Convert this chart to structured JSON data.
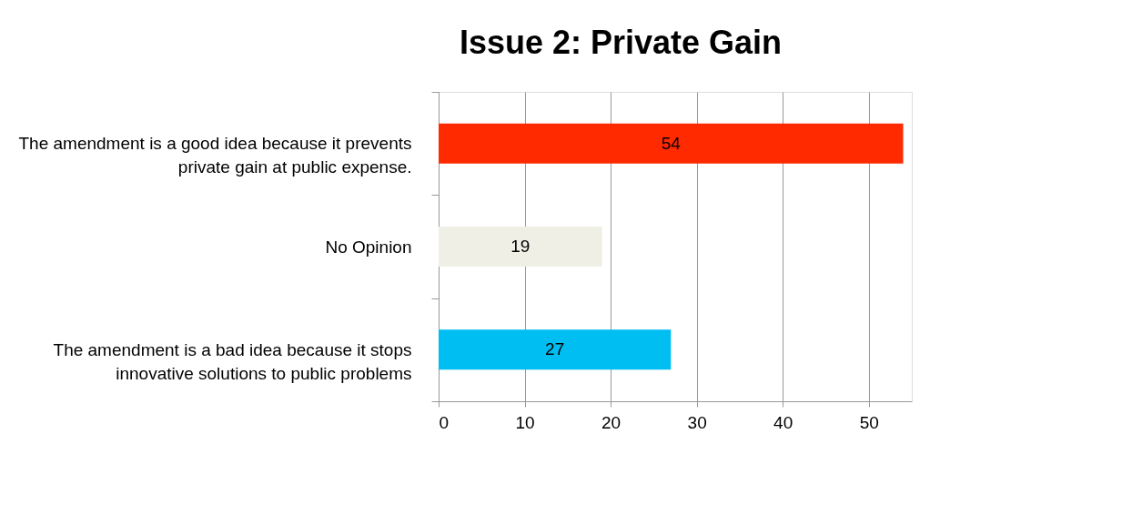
{
  "chart_data": {
    "type": "bar",
    "orientation": "horizontal",
    "title": "Issue 2: Private Gain",
    "categories": [
      "The amendment is a good idea because it prevents private gain at public expense.",
      "No Opinion",
      "The amendment is a bad idea because it stops innovative solutions to public problems"
    ],
    "values": [
      54,
      19,
      27
    ],
    "colors": [
      "#ff2a00",
      "#efefe6",
      "#00bdf2"
    ],
    "xlim": [
      0,
      55
    ],
    "xticks": [
      0,
      10,
      20,
      30,
      40,
      50
    ],
    "grid": "x",
    "data_labels": true
  }
}
